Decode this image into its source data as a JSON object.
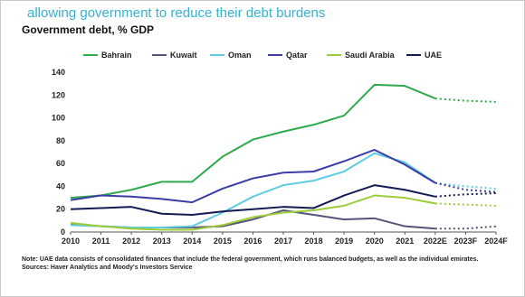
{
  "heading": "allowing government to reduce their debt burdens",
  "chart_data": {
    "type": "line",
    "title": "Government debt, % GDP",
    "xlabel": "",
    "ylabel": "",
    "categories": [
      "2010",
      "2011",
      "2012",
      "2013",
      "2014",
      "2015",
      "2016",
      "2017",
      "2018",
      "2019",
      "2020",
      "2021",
      "2022E",
      "2023F",
      "2024F"
    ],
    "forecast_start_index": 12,
    "ylim": [
      0,
      140
    ],
    "yticks": [
      0,
      20,
      40,
      60,
      80,
      100,
      120,
      140
    ],
    "grid": false,
    "legend_position": "top",
    "series": [
      {
        "name": "Bahrain",
        "color": "#2eaa4c",
        "values": [
          30,
          32,
          37,
          44,
          44,
          66,
          81,
          88,
          94,
          102,
          129,
          128,
          117,
          115,
          114
        ]
      },
      {
        "name": "Kuwait",
        "color": "#555577",
        "values": [
          7,
          5,
          4,
          4,
          4,
          5,
          11,
          19,
          15,
          11,
          12,
          5,
          3,
          3,
          5
        ]
      },
      {
        "name": "Oman",
        "color": "#62cbe0",
        "values": [
          6,
          5,
          4,
          4,
          5,
          17,
          31,
          41,
          45,
          53,
          69,
          61,
          43,
          40,
          38
        ]
      },
      {
        "name": "Qatar",
        "color": "#3c3ca8",
        "values": [
          28,
          32,
          31,
          29,
          26,
          38,
          47,
          52,
          53,
          62,
          72,
          59,
          43,
          37,
          35
        ]
      },
      {
        "name": "Saudi Arabia",
        "color": "#9ccc3a",
        "values": [
          8,
          5,
          3,
          2,
          2,
          6,
          13,
          17,
          19,
          23,
          32,
          30,
          25,
          24,
          23
        ]
      },
      {
        "name": "UAE",
        "color": "#141a55",
        "values": [
          20,
          21,
          22,
          16,
          15,
          18,
          20,
          22,
          21,
          32,
          41,
          37,
          31,
          33,
          34
        ]
      }
    ]
  },
  "note": {
    "line1": "Note: UAE data consists of consolidated finances that include the federal government, which runs balanced budgets, as well as the individual emirates.",
    "line2": "Sources: Haver Analytics and Moody's Investors Service"
  }
}
